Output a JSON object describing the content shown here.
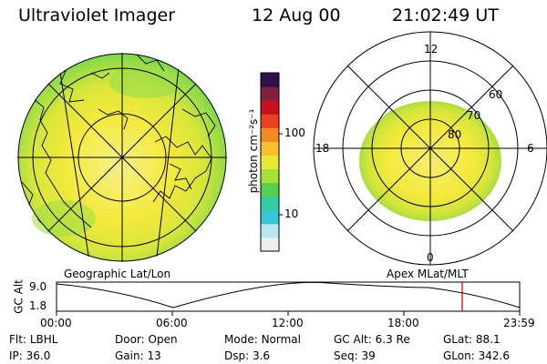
{
  "header": {
    "title": "Ultraviolet Imager",
    "date": "12 Aug 00",
    "time": "21:02:49 UT"
  },
  "colors": {
    "aurora_green": "#7ed84a",
    "aurora_yellow": "#f4ea3c",
    "aurora_lightyellow": "#f7f08a",
    "aurora_orange": "#f4b832",
    "outline": "#000000",
    "timeline_marker": "#cc0000"
  },
  "colorbar": {
    "unit_label": "photon cm⁻²s⁻¹",
    "ticks": [
      {
        "value": 100,
        "label": "100"
      },
      {
        "value": 10,
        "label": "10"
      }
    ],
    "colors": [
      "#eeeeee",
      "#b7e8f2",
      "#36c8d8",
      "#33ccaa",
      "#55d04a",
      "#a8e03a",
      "#e8e838",
      "#f8c030",
      "#f48820",
      "#e84020",
      "#c8101c",
      "#802040",
      "#301048"
    ]
  },
  "geographic_panel": {
    "label": "Geographic Lat/Lon"
  },
  "apex_panel": {
    "label": "Apex MLat/MLT",
    "mlt_labels": [
      {
        "text": "12"
      },
      {
        "text": "18"
      },
      {
        "text": "6"
      },
      {
        "text": "0"
      }
    ],
    "lat_labels": [
      {
        "text": "60"
      },
      {
        "text": "70"
      },
      {
        "text": "80"
      }
    ]
  },
  "timeline": {
    "ylabel": "GC Alt",
    "y_ticks": [
      "9.0",
      "1.8"
    ],
    "x_ticks": [
      "00:00",
      "06:00",
      "12:00",
      "18:00",
      "23:59"
    ],
    "marker_time": "21:02:49"
  },
  "info": {
    "row1": [
      {
        "key": "Flt:",
        "value": "LBHL"
      },
      {
        "key": "Door:",
        "value": "Open"
      },
      {
        "key": "Mode:",
        "value": "Normal"
      },
      {
        "key": "GC Alt:",
        "value": "6.3 Re"
      },
      {
        "key": "GLat:",
        "value": "88.1"
      }
    ],
    "row2": [
      {
        "key": "IP:",
        "value": "36.0"
      },
      {
        "key": "Gain:",
        "value": "13"
      },
      {
        "key": "Dsp:",
        "value": "3.6"
      },
      {
        "key": "Seq:",
        "value": "39"
      },
      {
        "key": "GLon:",
        "value": "342.6"
      }
    ]
  }
}
